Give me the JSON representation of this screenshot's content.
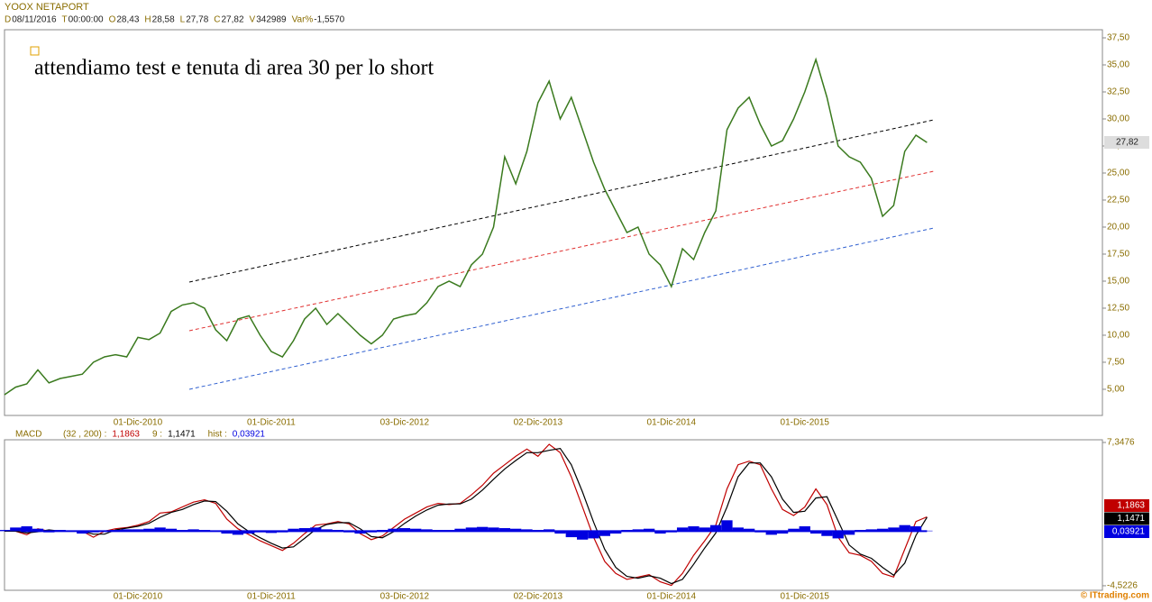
{
  "chart_data": [
    {
      "type": "line",
      "title": "YOOX NETAPORT",
      "header": [
        {
          "key": "D",
          "value": "08/11/2016"
        },
        {
          "key": "T",
          "value": "00:00:00"
        },
        {
          "key": "O",
          "value": "28,43"
        },
        {
          "key": "H",
          "value": "28,58"
        },
        {
          "key": "L",
          "value": "27,78"
        },
        {
          "key": "C",
          "value": "27,82"
        },
        {
          "key": "V",
          "value": "342989"
        },
        {
          "key": "Var%",
          "value": "-1,5570"
        }
      ],
      "annotation": "attendiamo test e tenuta di area 30 per lo short",
      "categories": [
        null,
        null,
        null,
        null,
        null,
        null,
        null,
        null,
        null,
        null,
        null,
        null,
        "01-Dic-2010",
        null,
        null,
        null,
        null,
        null,
        null,
        null,
        null,
        null,
        null,
        null,
        "01-Dic-2011",
        null,
        null,
        null,
        null,
        null,
        null,
        null,
        null,
        null,
        null,
        null,
        "03-Dic-2012",
        null,
        null,
        null,
        null,
        null,
        null,
        null,
        null,
        null,
        null,
        null,
        "02-Dic-2013",
        null,
        null,
        null,
        null,
        null,
        null,
        null,
        null,
        null,
        null,
        null,
        "01-Dic-2014",
        null,
        null,
        null,
        null,
        null,
        null,
        null,
        null,
        null,
        null,
        null,
        "01-Dic-2015",
        null,
        null,
        null,
        null,
        null,
        null,
        null,
        null,
        null,
        null,
        null
      ],
      "values": [
        4.5,
        5.2,
        5.5,
        6.8,
        5.6,
        6.0,
        6.2,
        6.4,
        7.5,
        8.0,
        8.2,
        8.0,
        9.8,
        9.6,
        10.2,
        12.2,
        12.8,
        13.0,
        12.5,
        10.5,
        9.5,
        11.5,
        11.8,
        10.0,
        8.5,
        8.0,
        9.5,
        11.5,
        12.5,
        11.0,
        12.0,
        11.0,
        10.0,
        9.2,
        10.0,
        11.5,
        11.8,
        12.0,
        13.0,
        14.5,
        15.0,
        14.5,
        16.5,
        17.5,
        20.0,
        26.5,
        24.0,
        27.0,
        31.5,
        33.5,
        30.0,
        32.0,
        29.0,
        26.0,
        23.5,
        21.5,
        19.5,
        20.0,
        17.5,
        16.5,
        14.5,
        18.0,
        17.0,
        19.5,
        21.5,
        29.0,
        31.0,
        32.0,
        29.5,
        27.5,
        28.0,
        30.0,
        32.5,
        35.5,
        32.0,
        27.5,
        26.5,
        26.0,
        24.5,
        21.0,
        22.0,
        27.0,
        28.5,
        27.82
      ],
      "color": "#3a7a1e",
      "ylim": [
        2.58,
        38.25
      ],
      "yticks": [
        {
          "value": 5,
          "label": "5,00"
        },
        {
          "value": 7.5,
          "label": "7,50"
        },
        {
          "value": 10,
          "label": "10,00"
        },
        {
          "value": 12.5,
          "label": "12,50"
        },
        {
          "value": 15,
          "label": "15,00"
        },
        {
          "value": 17.5,
          "label": "17,50"
        },
        {
          "value": 20,
          "label": "20,00"
        },
        {
          "value": 22.5,
          "label": "22,50"
        },
        {
          "value": 25,
          "label": "25,00"
        },
        {
          "value": 27.5,
          "label": "27,50"
        },
        {
          "value": 30,
          "label": "30,00"
        },
        {
          "value": 32.5,
          "label": "32,50"
        },
        {
          "value": 35,
          "label": "35,00"
        },
        {
          "value": 37.5,
          "label": "37,50"
        }
      ],
      "grid": false
    },
    {
      "type": "macd",
      "title": "MACD",
      "categories": [
        null,
        null,
        null,
        null,
        null,
        null,
        null,
        null,
        null,
        null,
        null,
        null,
        "01-Dic-2010",
        null,
        null,
        null,
        null,
        null,
        null,
        null,
        null,
        null,
        null,
        null,
        "01-Dic-2011",
        null,
        null,
        null,
        null,
        null,
        null,
        null,
        null,
        null,
        null,
        null,
        "03-Dic-2012",
        null,
        null,
        null,
        null,
        null,
        null,
        null,
        null,
        null,
        null,
        null,
        "02-Dic-2013",
        null,
        null,
        null,
        null,
        null,
        null,
        null,
        null,
        null,
        null,
        null,
        "01-Dic-2014",
        null,
        null,
        null,
        null,
        null,
        null,
        null,
        null,
        null,
        null,
        null,
        "01-Dic-2015",
        null,
        null,
        null,
        null,
        null,
        null,
        null,
        null,
        null,
        null,
        null
      ],
      "series": [
        {
          "name": "(32 , 200) :",
          "color": "#c00000",
          "label": "1,1863",
          "kind": "line",
          "values": [
            0,
            0,
            -0.3,
            0.2,
            0,
            0,
            0,
            0,
            -0.5,
            0,
            0.2,
            0.3,
            0.5,
            0.8,
            1.5,
            1.6,
            2.0,
            2.4,
            2.6,
            2.3,
            1.0,
            0.2,
            -0.3,
            -0.8,
            -1.2,
            -1.6,
            -1.0,
            -0.2,
            0.5,
            0.6,
            0.8,
            0.6,
            -0.2,
            -0.7,
            -0.4,
            0.3,
            1.0,
            1.5,
            2.0,
            2.3,
            2.2,
            2.3,
            3.0,
            3.8,
            4.8,
            5.5,
            6.2,
            6.8,
            6.2,
            7.2,
            6.5,
            4.5,
            2.0,
            -0.5,
            -2.5,
            -3.5,
            -4.0,
            -3.8,
            -3.6,
            -4.2,
            -4.5,
            -3.5,
            -2.0,
            -0.8,
            0.5,
            3.5,
            5.5,
            5.8,
            5.5,
            3.5,
            1.8,
            1.3,
            2.0,
            3.5,
            2.2,
            -0.5,
            -1.8,
            -2.0,
            -2.5,
            -3.5,
            -3.8,
            -1.5,
            0.8,
            1.1863
          ]
        },
        {
          "name": "9 :",
          "color": "#000000",
          "label": "1,1471",
          "kind": "line",
          "values": [
            0,
            0,
            -0.15,
            -0.05,
            0.1,
            0,
            0,
            0,
            -0.25,
            -0.25,
            0.1,
            0.25,
            0.4,
            0.65,
            1.15,
            1.55,
            1.8,
            2.2,
            2.5,
            2.45,
            1.65,
            0.6,
            -0.05,
            -0.55,
            -1.0,
            -1.4,
            -1.3,
            -0.6,
            0.15,
            0.55,
            0.7,
            0.7,
            0.2,
            -0.45,
            -0.55,
            -0.05,
            0.65,
            1.25,
            1.75,
            2.15,
            2.25,
            2.25,
            2.65,
            3.4,
            4.3,
            5.15,
            5.85,
            6.5,
            6.5,
            6.7,
            6.85,
            5.5,
            3.25,
            0.75,
            -1.5,
            -3.0,
            -3.75,
            -3.9,
            -3.7,
            -3.9,
            -4.35,
            -4.0,
            -2.75,
            -1.4,
            -0.15,
            2.0,
            4.5,
            5.65,
            5.65,
            4.5,
            2.65,
            1.55,
            1.65,
            2.75,
            2.85,
            0.85,
            -1.15,
            -1.9,
            -2.25,
            -3.0,
            -3.65,
            -2.65,
            -0.35,
            1.1471
          ]
        },
        {
          "name": "hist :",
          "color": "#0000e0",
          "label": "0,03921",
          "kind": "bar",
          "values": [
            0.1,
            0.3,
            0.4,
            0.2,
            -0.1,
            0.1,
            0.05,
            -0.2,
            -0.1,
            0.05,
            0.1,
            0.15,
            0.15,
            0.2,
            0.3,
            0.2,
            0.1,
            0.15,
            0.1,
            0.05,
            -0.2,
            -0.3,
            -0.2,
            -0.1,
            -0.15,
            -0.1,
            0.2,
            0.25,
            0.3,
            0.15,
            0.1,
            -0.1,
            -0.2,
            -0.1,
            0.1,
            0.2,
            0.25,
            0.2,
            0.15,
            0.1,
            0.1,
            0.2,
            0.3,
            0.35,
            0.3,
            0.25,
            0.2,
            0.15,
            0.1,
            0.15,
            -0.2,
            -0.5,
            -0.7,
            -0.6,
            -0.4,
            -0.2,
            0.1,
            0.15,
            0.2,
            -0.2,
            -0.1,
            0.3,
            0.4,
            0.3,
            0.5,
            0.9,
            0.3,
            0.2,
            -0.1,
            -0.3,
            -0.2,
            0.2,
            0.4,
            -0.2,
            -0.4,
            -0.6,
            -0.3,
            0.1,
            0.15,
            0.2,
            0.3,
            0.5,
            0.4,
            0.03921
          ]
        }
      ],
      "ylim": [
        -4.9,
        7.57
      ],
      "yticks": [
        {
          "value": 7.3476,
          "label": "7,3476"
        },
        {
          "value": -4.5226,
          "label": "-4,5226"
        }
      ]
    },
    {
      "type": "footer",
      "text": "© ITtrading.com"
    }
  ]
}
